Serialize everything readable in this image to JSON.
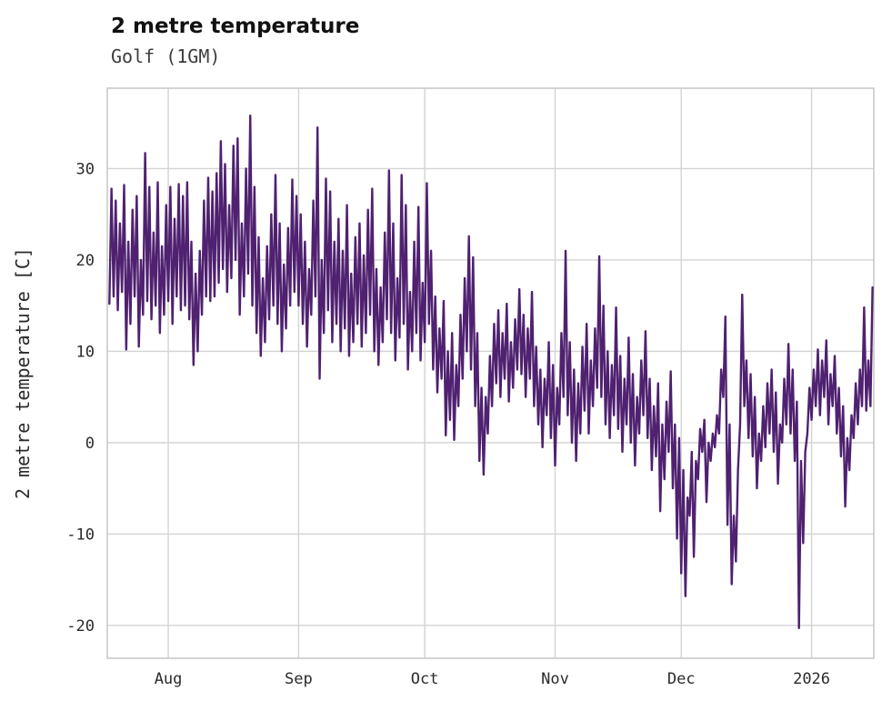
{
  "header": {
    "title": "2 metre temperature",
    "subtitle": "Golf (1GM)"
  },
  "chart_data": {
    "type": "line",
    "title": "2 metre temperature",
    "subtitle": "Golf (1GM)",
    "xlabel": "",
    "ylabel": "2 metre temperature [C]",
    "legend": null,
    "grid": true,
    "line_color": "#4f2170",
    "grid_color": "#d4d4d4",
    "x_unit": "days since first sample (2 samples per day, x_step apart)",
    "x_step": 0.5,
    "x_domain": [
      -0.5,
      181.8
    ],
    "y_domain": [
      -23.6,
      38.8
    ],
    "y_ticks": [
      -20,
      -10,
      0,
      10,
      20,
      30
    ],
    "x_ticks": [
      {
        "label": "Aug",
        "day": 14
      },
      {
        "label": "Sep",
        "day": 45
      },
      {
        "label": "Oct",
        "day": 75
      },
      {
        "label": "Nov",
        "day": 106
      },
      {
        "label": "Dec",
        "day": 136
      },
      {
        "label": "2026",
        "day": 167
      }
    ],
    "values": [
      15.2,
      27.8,
      16.0,
      26.5,
      14.5,
      24.0,
      16.5,
      28.2,
      10.2,
      22.0,
      13.0,
      25.5,
      16.0,
      27.0,
      10.5,
      20.0,
      14.0,
      31.7,
      15.5,
      28.0,
      13.5,
      23.0,
      15.0,
      28.5,
      12.0,
      21.5,
      14.0,
      26.0,
      15.5,
      28.0,
      13.0,
      24.5,
      16.0,
      28.3,
      14.5,
      27.0,
      15.0,
      28.5,
      13.5,
      22.0,
      8.5,
      18.5,
      10.0,
      21.0,
      14.0,
      26.5,
      16.0,
      29.0,
      15.5,
      27.5,
      16.0,
      29.5,
      17.5,
      33.0,
      19.0,
      30.5,
      16.5,
      26.0,
      18.0,
      32.5,
      20.0,
      33.3,
      14.0,
      24.0,
      16.0,
      30.0,
      18.5,
      35.8,
      15.0,
      28.0,
      12.0,
      22.5,
      9.5,
      18.0,
      11.0,
      21.5,
      13.5,
      25.0,
      15.0,
      29.3,
      13.0,
      24.0,
      10.0,
      19.5,
      12.5,
      23.5,
      15.0,
      28.8,
      16.5,
      27.0,
      15.0,
      25.0,
      13.0,
      22.0,
      10.5,
      19.0,
      14.0,
      26.5,
      16.0,
      34.5,
      7.0,
      20.0,
      12.0,
      28.9,
      14.5,
      27.5,
      11.0,
      22.0,
      13.0,
      24.5,
      10.0,
      21.0,
      12.5,
      26.0,
      9.5,
      18.5,
      11.0,
      22.5,
      13.0,
      24.0,
      10.5,
      20.5,
      12.0,
      25.5,
      14.0,
      27.8,
      10.0,
      19.0,
      8.5,
      17.0,
      11.0,
      23.0,
      13.5,
      29.8,
      12.0,
      24.0,
      9.0,
      18.0,
      11.5,
      29.3,
      13.0,
      26.0,
      8.0,
      16.5,
      10.0,
      22.0,
      12.0,
      25.8,
      9.0,
      17.5,
      11.0,
      28.4,
      13.0,
      21.0,
      8.0,
      16.0,
      5.5,
      12.5,
      7.0,
      15.5,
      0.8,
      10.0,
      2.5,
      12.0,
      0.3,
      8.5,
      4.0,
      14.0,
      7.0,
      18.0,
      10.0,
      22.6,
      8.0,
      20.3,
      4.0,
      12.0,
      -2.0,
      6.0,
      -3.5,
      5.0,
      1.0,
      9.5,
      4.0,
      13.0,
      6.5,
      14.5,
      5.0,
      12.0,
      7.0,
      15.2,
      4.5,
      11.0,
      6.0,
      13.5,
      8.0,
      16.8,
      7.5,
      14.0,
      5.0,
      12.5,
      7.0,
      16.5,
      4.0,
      10.5,
      2.0,
      8.0,
      -0.5,
      7.0,
      3.0,
      11.0,
      0.5,
      8.5,
      -2.5,
      6.0,
      2.0,
      12.0,
      5.0,
      21.0,
      3.0,
      11.0,
      0.0,
      8.0,
      -2.0,
      6.5,
      1.0,
      10.5,
      3.5,
      13.0,
      1.0,
      9.0,
      4.0,
      12.5,
      6.0,
      20.4,
      5.0,
      15.0,
      2.0,
      10.0,
      0.5,
      8.5,
      3.0,
      14.8,
      1.5,
      9.5,
      -1.0,
      7.0,
      2.0,
      11.5,
      0.0,
      7.5,
      -2.5,
      5.0,
      1.0,
      9.0,
      3.0,
      12.2,
      0.5,
      7.0,
      -3.0,
      4.0,
      -1.5,
      6.5,
      -7.5,
      2.0,
      -4.0,
      4.5,
      -1.0,
      7.8,
      -5.0,
      2.0,
      -10.5,
      0.5,
      -14.3,
      -3.0,
      -16.8,
      -6.0,
      -8.0,
      -1.0,
      -12.5,
      -2.0,
      -4.0,
      1.5,
      -1.0,
      2.5,
      -6.5,
      0.0,
      -2.0,
      1.0,
      -0.5,
      3.0,
      1.0,
      8.0,
      5.0,
      13.8,
      -9.0,
      2.0,
      -15.5,
      -8.0,
      -13.0,
      -3.0,
      2.0,
      16.2,
      4.0,
      9.0,
      0.5,
      7.5,
      -1.5,
      5.0,
      -5.0,
      1.0,
      -2.0,
      4.0,
      -0.5,
      6.5,
      1.0,
      8.0,
      -1.0,
      5.5,
      -4.5,
      2.0,
      0.0,
      7.0,
      2.0,
      10.8,
      1.0,
      8.0,
      -2.0,
      4.5,
      -20.3,
      -2.0,
      -11.0,
      -1.0,
      1.0,
      6.0,
      2.5,
      8.0,
      4.0,
      10.2,
      3.0,
      9.0,
      5.0,
      11.2,
      2.0,
      7.5,
      4.0,
      9.5,
      1.0,
      6.0,
      -1.5,
      4.0,
      -7.0,
      0.5,
      -3.0,
      3.0,
      0.5,
      6.5,
      2.0,
      8.0,
      4.0,
      14.8,
      3.5,
      9.0,
      4.0,
      17.0
    ]
  }
}
